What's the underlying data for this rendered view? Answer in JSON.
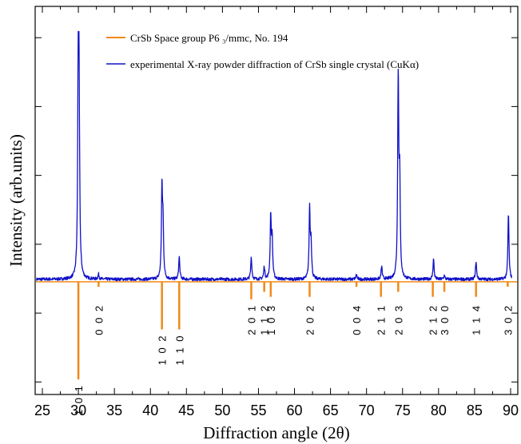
{
  "chart_data": {
    "type": "line",
    "xlabel": "Diffraction angle  (2θ)",
    "ylabel": "Intensity (arb.units)",
    "xlim": [
      24,
      91
    ],
    "x_ticks": [
      25,
      30,
      35,
      40,
      45,
      50,
      55,
      60,
      65,
      70,
      75,
      80,
      85,
      90
    ],
    "ylim": [
      -0.45,
      1.1
    ],
    "y_ticks_visible": false,
    "grid": false,
    "legend_placement": "top-center",
    "series": [
      {
        "name": "experimental X-ray powder diffraction    of CrSb single crystal  (CuKα)",
        "color": "#1010c8",
        "baseline": 0.01,
        "peaks": [
          {
            "x": 30.0,
            "y": 1.0
          },
          {
            "x": 30.1,
            "y": 0.5
          },
          {
            "x": 32.8,
            "y": 0.02
          },
          {
            "x": 41.6,
            "y": 0.35
          },
          {
            "x": 41.75,
            "y": 0.2
          },
          {
            "x": 44.0,
            "y": 0.09
          },
          {
            "x": 54.0,
            "y": 0.09
          },
          {
            "x": 55.8,
            "y": 0.05
          },
          {
            "x": 56.7,
            "y": 0.25
          },
          {
            "x": 56.9,
            "y": 0.15
          },
          {
            "x": 62.1,
            "y": 0.28
          },
          {
            "x": 62.3,
            "y": 0.14
          },
          {
            "x": 68.6,
            "y": 0.02
          },
          {
            "x": 72.1,
            "y": 0.05
          },
          {
            "x": 74.4,
            "y": 0.79
          },
          {
            "x": 74.6,
            "y": 0.37
          },
          {
            "x": 79.3,
            "y": 0.08
          },
          {
            "x": 80.8,
            "y": 0.015
          },
          {
            "x": 85.2,
            "y": 0.07
          },
          {
            "x": 89.7,
            "y": 0.26
          }
        ]
      },
      {
        "name": "CrSb Space group P6 ₃/mmc, No. 194",
        "color": "#f08a18",
        "type": "stick-reference",
        "sticks": [
          {
            "x": 30.0,
            "depth": 0.39,
            "hkl": "1 0 1"
          },
          {
            "x": 32.8,
            "depth": 0.02,
            "hkl": "0 0 2"
          },
          {
            "x": 41.6,
            "depth": 0.19,
            "hkl": "1 0 2"
          },
          {
            "x": 44.0,
            "depth": 0.19,
            "hkl": "1 1 0"
          },
          {
            "x": 54.0,
            "depth": 0.07,
            "hkl": "2 0 1"
          },
          {
            "x": 55.8,
            "depth": 0.04,
            "hkl": "1 1 2"
          },
          {
            "x": 56.7,
            "depth": 0.06,
            "hkl": "1 0 3"
          },
          {
            "x": 62.1,
            "depth": 0.06,
            "hkl": "2 0 2"
          },
          {
            "x": 68.6,
            "depth": 0.02,
            "hkl": "0 0 4"
          },
          {
            "x": 72.0,
            "depth": 0.06,
            "hkl": "2 1 1"
          },
          {
            "x": 74.4,
            "depth": 0.04,
            "hkl": "2 0 3"
          },
          {
            "x": 79.2,
            "depth": 0.06,
            "hkl": "2 1 2"
          },
          {
            "x": 80.8,
            "depth": 0.04,
            "hkl": "3 0 0"
          },
          {
            "x": 85.2,
            "depth": 0.06,
            "hkl": "1 1 4"
          },
          {
            "x": 89.6,
            "depth": 0.02,
            "hkl": "3 0 2"
          }
        ]
      }
    ]
  }
}
